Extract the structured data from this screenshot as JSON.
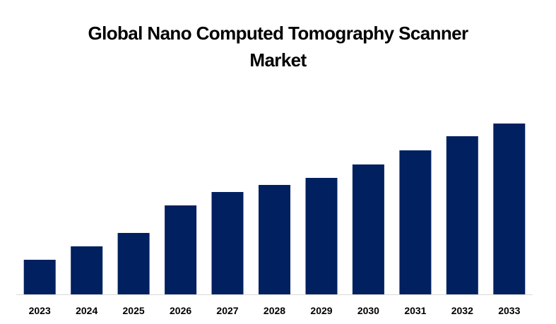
{
  "chart_data": {
    "type": "bar",
    "title": "Global Nano Computed Tomography Scanner Market",
    "title_lines": [
      "Global Nano Computed Tomography Scanner",
      "Market"
    ],
    "xlabel": "",
    "ylabel": "",
    "categories": [
      "2023",
      "2024",
      "2025",
      "2026",
      "2027",
      "2028",
      "2029",
      "2030",
      "2031",
      "2032",
      "2033"
    ],
    "values": [
      49,
      68,
      87,
      126,
      145,
      155,
      165,
      184,
      204,
      224,
      242
    ],
    "value_note": "Relative bar heights (no y-axis shown)",
    "ylim": [
      0,
      250
    ],
    "grid": false,
    "legend": "none",
    "bar_color": "#002060",
    "axis_color": "#d9d9d9"
  }
}
